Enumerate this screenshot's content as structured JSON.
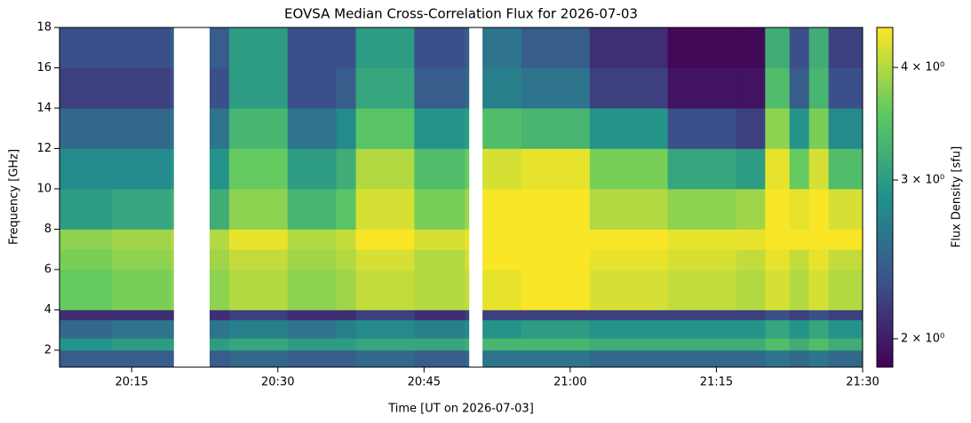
{
  "chart_data": {
    "type": "spectrogram",
    "title": "EOVSA Median Cross-Correlation Flux for 2026-07-03",
    "x_label": "Time [UT on 2026-07-03]",
    "y_label": "Frequency [GHz]",
    "x_edges": [
      1207.6,
      1213,
      1219.0,
      1219.3,
      1223,
      1225,
      1231,
      1236,
      1238,
      1244,
      1249.2,
      1249.6,
      1251,
      1255,
      1262,
      1270,
      1277,
      1280,
      1282.5,
      1284.5,
      1286.5,
      1290
    ],
    "y_edges": [
      1.16,
      2,
      2.6,
      3.5,
      4,
      6,
      7,
      8,
      10,
      12,
      14,
      16,
      18
    ],
    "values": [
      [
        2.4,
        2.4,
        2.4,
        null,
        2.4,
        2.5,
        2.4,
        2.4,
        2.5,
        2.4,
        2.5,
        null,
        2.6,
        2.6,
        2.5,
        2.5,
        2.5,
        2.6,
        2.5,
        2.6,
        2.5
      ],
      [
        2.9,
        3.0,
        3.0,
        null,
        3.0,
        3.1,
        3.0,
        3.0,
        3.1,
        3.1,
        3.2,
        null,
        3.3,
        3.3,
        3.2,
        3.2,
        3.2,
        3.4,
        3.2,
        3.4,
        3.2
      ],
      [
        2.5,
        2.6,
        2.6,
        null,
        2.6,
        2.7,
        2.6,
        2.7,
        2.8,
        2.7,
        2.8,
        null,
        2.9,
        3.0,
        2.9,
        2.9,
        2.9,
        3.1,
        2.9,
        3.1,
        2.9
      ],
      [
        2.1,
        2.1,
        2.1,
        null,
        2.1,
        2.2,
        2.1,
        2.1,
        2.2,
        2.1,
        2.2,
        null,
        2.2,
        2.2,
        2.2,
        2.2,
        2.2,
        2.3,
        2.2,
        2.3,
        2.2
      ],
      [
        3.6,
        3.7,
        3.8,
        null,
        3.8,
        4.0,
        3.8,
        3.9,
        4.1,
        4.0,
        4.1,
        null,
        4.3,
        4.4,
        4.2,
        4.1,
        4.0,
        4.2,
        4.0,
        4.2,
        4.0
      ],
      [
        3.7,
        3.8,
        3.9,
        null,
        3.9,
        4.1,
        3.9,
        4.0,
        4.2,
        4.0,
        4.2,
        null,
        4.4,
        4.4,
        4.3,
        4.2,
        4.1,
        4.3,
        4.1,
        4.3,
        4.1
      ],
      [
        3.8,
        3.9,
        4.0,
        null,
        4.0,
        4.3,
        4.0,
        4.1,
        4.4,
        4.2,
        4.3,
        null,
        4.4,
        4.4,
        4.4,
        4.3,
        4.3,
        4.4,
        4.4,
        4.4,
        4.4
      ],
      [
        3.0,
        3.1,
        3.2,
        null,
        3.2,
        3.8,
        3.3,
        3.5,
        4.2,
        3.7,
        3.9,
        null,
        4.4,
        4.4,
        4.0,
        3.8,
        3.9,
        4.4,
        4.3,
        4.4,
        4.2
      ],
      [
        2.8,
        2.8,
        2.9,
        null,
        2.9,
        3.6,
        3.0,
        3.2,
        4.0,
        3.4,
        3.6,
        null,
        4.2,
        4.3,
        3.7,
        3.1,
        3.0,
        4.3,
        3.6,
        4.2,
        3.4
      ],
      [
        2.5,
        2.5,
        2.6,
        null,
        2.6,
        3.3,
        2.6,
        2.8,
        3.5,
        2.9,
        3.0,
        null,
        3.4,
        3.3,
        2.9,
        2.3,
        2.2,
        3.8,
        2.9,
        3.7,
        2.8
      ],
      [
        2.2,
        2.2,
        2.3,
        null,
        2.3,
        3.0,
        2.3,
        2.4,
        3.1,
        2.4,
        2.5,
        null,
        2.7,
        2.6,
        2.2,
        1.95,
        1.95,
        3.4,
        2.4,
        3.3,
        2.3
      ],
      [
        2.3,
        2.3,
        2.4,
        null,
        2.4,
        3.0,
        2.3,
        2.3,
        3.0,
        2.3,
        2.4,
        null,
        2.6,
        2.4,
        2.1,
        1.9,
        1.9,
        3.2,
        2.3,
        3.2,
        2.2
      ]
    ],
    "xlim": [
      1207.6,
      1290
    ],
    "xticks": [
      {
        "value": 1215,
        "label": "20:15"
      },
      {
        "value": 1230,
        "label": "20:30"
      },
      {
        "value": 1245,
        "label": "20:45"
      },
      {
        "value": 1260,
        "label": "21:00"
      },
      {
        "value": 1275,
        "label": "21:15"
      },
      {
        "value": 1290,
        "label": "21:30"
      }
    ],
    "ylim": [
      1.16,
      18
    ],
    "yticks": [
      2,
      4,
      6,
      8,
      10,
      12,
      14,
      16,
      18
    ],
    "colormap": "viridis",
    "colorbar": {
      "label": "Flux Density [sfu]",
      "log": true,
      "clim": [
        1.86,
        4.43
      ],
      "ticks": [
        {
          "value": 2,
          "label": "2 × 10⁰"
        },
        {
          "value": 3,
          "label": "3 × 10⁰"
        },
        {
          "value": 4,
          "label": "4 × 10⁰"
        }
      ]
    }
  }
}
